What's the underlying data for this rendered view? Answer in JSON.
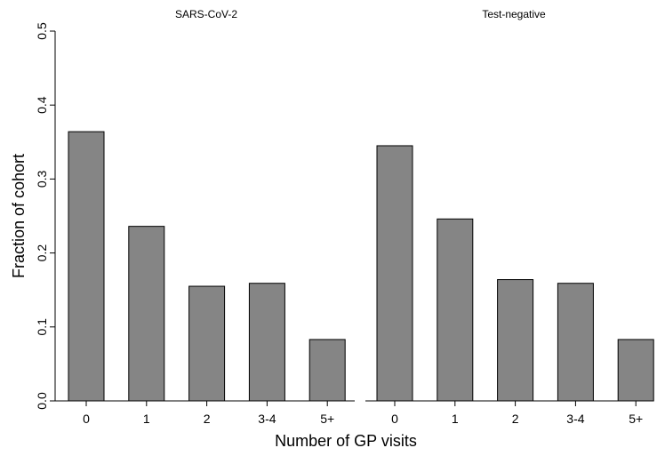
{
  "chart_data": {
    "type": "bar",
    "ylabel": "Fraction of cohort",
    "xlabel": "Number of GP visits",
    "ylim": [
      0,
      0.5
    ],
    "yticks": [
      0.0,
      0.1,
      0.2,
      0.3,
      0.4,
      0.5
    ],
    "ytick_labels": [
      "0.0",
      "0.1",
      "0.2",
      "0.3",
      "0.4",
      "0.5"
    ],
    "categories": [
      "0",
      "1",
      "2",
      "3-4",
      "5+"
    ],
    "grid": false,
    "bar_color": "#858585",
    "bar_edge_color": "#000000",
    "panels": [
      {
        "title": "SARS-CoV-2",
        "values": [
          0.364,
          0.236,
          0.155,
          0.159,
          0.083
        ]
      },
      {
        "title": "Test-negative",
        "values": [
          0.345,
          0.246,
          0.164,
          0.159,
          0.083
        ]
      }
    ]
  }
}
